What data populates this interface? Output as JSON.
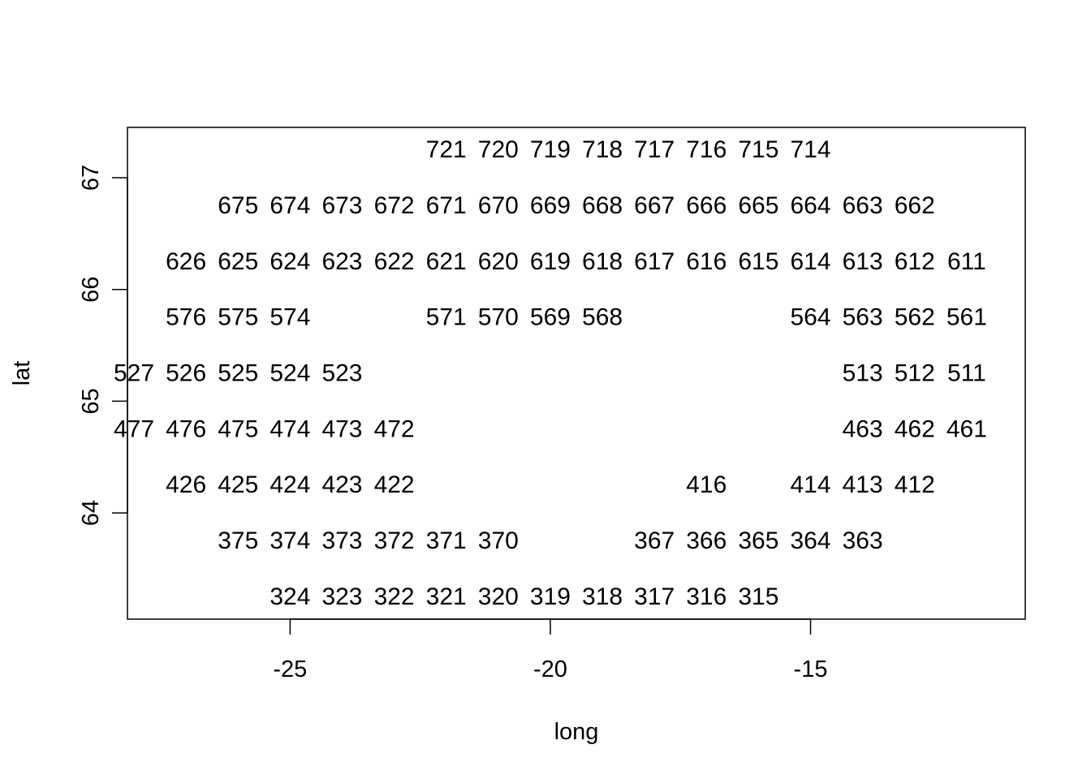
{
  "chart_data": {
    "type": "scatter",
    "xlabel": "long",
    "ylabel": "lat",
    "xlim": [
      -28.125,
      -10.875
    ],
    "ylim": [
      63.05,
      67.45
    ],
    "x_ticks": [
      -25,
      -20,
      -15
    ],
    "x_tick_labels": [
      "-25",
      "-20",
      "-15"
    ],
    "y_ticks": [
      64,
      65,
      66,
      67
    ],
    "y_tick_labels": [
      "64",
      "65",
      "66",
      "67"
    ],
    "grid": false,
    "legend": "none",
    "series": [
      {
        "marker": "text-label",
        "points": [
          {
            "x": -22.0,
            "y": 67.25,
            "label": "721"
          },
          {
            "x": -21.0,
            "y": 67.25,
            "label": "720"
          },
          {
            "x": -20.0,
            "y": 67.25,
            "label": "719"
          },
          {
            "x": -19.0,
            "y": 67.25,
            "label": "718"
          },
          {
            "x": -18.0,
            "y": 67.25,
            "label": "717"
          },
          {
            "x": -17.0,
            "y": 67.25,
            "label": "716"
          },
          {
            "x": -16.0,
            "y": 67.25,
            "label": "715"
          },
          {
            "x": -15.0,
            "y": 67.25,
            "label": "714"
          },
          {
            "x": -26.0,
            "y": 66.75,
            "label": "675"
          },
          {
            "x": -25.0,
            "y": 66.75,
            "label": "674"
          },
          {
            "x": -24.0,
            "y": 66.75,
            "label": "673"
          },
          {
            "x": -23.0,
            "y": 66.75,
            "label": "672"
          },
          {
            "x": -22.0,
            "y": 66.75,
            "label": "671"
          },
          {
            "x": -21.0,
            "y": 66.75,
            "label": "670"
          },
          {
            "x": -20.0,
            "y": 66.75,
            "label": "669"
          },
          {
            "x": -19.0,
            "y": 66.75,
            "label": "668"
          },
          {
            "x": -18.0,
            "y": 66.75,
            "label": "667"
          },
          {
            "x": -17.0,
            "y": 66.75,
            "label": "666"
          },
          {
            "x": -16.0,
            "y": 66.75,
            "label": "665"
          },
          {
            "x": -15.0,
            "y": 66.75,
            "label": "664"
          },
          {
            "x": -14.0,
            "y": 66.75,
            "label": "663"
          },
          {
            "x": -13.0,
            "y": 66.75,
            "label": "662"
          },
          {
            "x": -27.0,
            "y": 66.25,
            "label": "626"
          },
          {
            "x": -26.0,
            "y": 66.25,
            "label": "625"
          },
          {
            "x": -25.0,
            "y": 66.25,
            "label": "624"
          },
          {
            "x": -24.0,
            "y": 66.25,
            "label": "623"
          },
          {
            "x": -23.0,
            "y": 66.25,
            "label": "622"
          },
          {
            "x": -22.0,
            "y": 66.25,
            "label": "621"
          },
          {
            "x": -21.0,
            "y": 66.25,
            "label": "620"
          },
          {
            "x": -20.0,
            "y": 66.25,
            "label": "619"
          },
          {
            "x": -19.0,
            "y": 66.25,
            "label": "618"
          },
          {
            "x": -18.0,
            "y": 66.25,
            "label": "617"
          },
          {
            "x": -17.0,
            "y": 66.25,
            "label": "616"
          },
          {
            "x": -16.0,
            "y": 66.25,
            "label": "615"
          },
          {
            "x": -15.0,
            "y": 66.25,
            "label": "614"
          },
          {
            "x": -14.0,
            "y": 66.25,
            "label": "613"
          },
          {
            "x": -13.0,
            "y": 66.25,
            "label": "612"
          },
          {
            "x": -12.0,
            "y": 66.25,
            "label": "611"
          },
          {
            "x": -27.0,
            "y": 65.75,
            "label": "576"
          },
          {
            "x": -26.0,
            "y": 65.75,
            "label": "575"
          },
          {
            "x": -25.0,
            "y": 65.75,
            "label": "574"
          },
          {
            "x": -22.0,
            "y": 65.75,
            "label": "571"
          },
          {
            "x": -21.0,
            "y": 65.75,
            "label": "570"
          },
          {
            "x": -20.0,
            "y": 65.75,
            "label": "569"
          },
          {
            "x": -19.0,
            "y": 65.75,
            "label": "568"
          },
          {
            "x": -15.0,
            "y": 65.75,
            "label": "564"
          },
          {
            "x": -14.0,
            "y": 65.75,
            "label": "563"
          },
          {
            "x": -13.0,
            "y": 65.75,
            "label": "562"
          },
          {
            "x": -12.0,
            "y": 65.75,
            "label": "561"
          },
          {
            "x": -28.0,
            "y": 65.25,
            "label": "527"
          },
          {
            "x": -27.0,
            "y": 65.25,
            "label": "526"
          },
          {
            "x": -26.0,
            "y": 65.25,
            "label": "525"
          },
          {
            "x": -25.0,
            "y": 65.25,
            "label": "524"
          },
          {
            "x": -24.0,
            "y": 65.25,
            "label": "523"
          },
          {
            "x": -14.0,
            "y": 65.25,
            "label": "513"
          },
          {
            "x": -13.0,
            "y": 65.25,
            "label": "512"
          },
          {
            "x": -12.0,
            "y": 65.25,
            "label": "511"
          },
          {
            "x": -28.0,
            "y": 64.75,
            "label": "477"
          },
          {
            "x": -27.0,
            "y": 64.75,
            "label": "476"
          },
          {
            "x": -26.0,
            "y": 64.75,
            "label": "475"
          },
          {
            "x": -25.0,
            "y": 64.75,
            "label": "474"
          },
          {
            "x": -24.0,
            "y": 64.75,
            "label": "473"
          },
          {
            "x": -23.0,
            "y": 64.75,
            "label": "472"
          },
          {
            "x": -14.0,
            "y": 64.75,
            "label": "463"
          },
          {
            "x": -13.0,
            "y": 64.75,
            "label": "462"
          },
          {
            "x": -12.0,
            "y": 64.75,
            "label": "461"
          },
          {
            "x": -27.0,
            "y": 64.25,
            "label": "426"
          },
          {
            "x": -26.0,
            "y": 64.25,
            "label": "425"
          },
          {
            "x": -25.0,
            "y": 64.25,
            "label": "424"
          },
          {
            "x": -24.0,
            "y": 64.25,
            "label": "423"
          },
          {
            "x": -23.0,
            "y": 64.25,
            "label": "422"
          },
          {
            "x": -17.0,
            "y": 64.25,
            "label": "416"
          },
          {
            "x": -15.0,
            "y": 64.25,
            "label": "414"
          },
          {
            "x": -14.0,
            "y": 64.25,
            "label": "413"
          },
          {
            "x": -13.0,
            "y": 64.25,
            "label": "412"
          },
          {
            "x": -26.0,
            "y": 63.75,
            "label": "375"
          },
          {
            "x": -25.0,
            "y": 63.75,
            "label": "374"
          },
          {
            "x": -24.0,
            "y": 63.75,
            "label": "373"
          },
          {
            "x": -23.0,
            "y": 63.75,
            "label": "372"
          },
          {
            "x": -22.0,
            "y": 63.75,
            "label": "371"
          },
          {
            "x": -21.0,
            "y": 63.75,
            "label": "370"
          },
          {
            "x": -18.0,
            "y": 63.75,
            "label": "367"
          },
          {
            "x": -17.0,
            "y": 63.75,
            "label": "366"
          },
          {
            "x": -16.0,
            "y": 63.75,
            "label": "365"
          },
          {
            "x": -15.0,
            "y": 63.75,
            "label": "364"
          },
          {
            "x": -14.0,
            "y": 63.75,
            "label": "363"
          },
          {
            "x": -25.0,
            "y": 63.25,
            "label": "324"
          },
          {
            "x": -24.0,
            "y": 63.25,
            "label": "323"
          },
          {
            "x": -23.0,
            "y": 63.25,
            "label": "322"
          },
          {
            "x": -22.0,
            "y": 63.25,
            "label": "321"
          },
          {
            "x": -21.0,
            "y": 63.25,
            "label": "320"
          },
          {
            "x": -20.0,
            "y": 63.25,
            "label": "319"
          },
          {
            "x": -19.0,
            "y": 63.25,
            "label": "318"
          },
          {
            "x": -18.0,
            "y": 63.25,
            "label": "317"
          },
          {
            "x": -17.0,
            "y": 63.25,
            "label": "316"
          },
          {
            "x": -16.0,
            "y": 63.25,
            "label": "315"
          }
        ]
      }
    ]
  }
}
